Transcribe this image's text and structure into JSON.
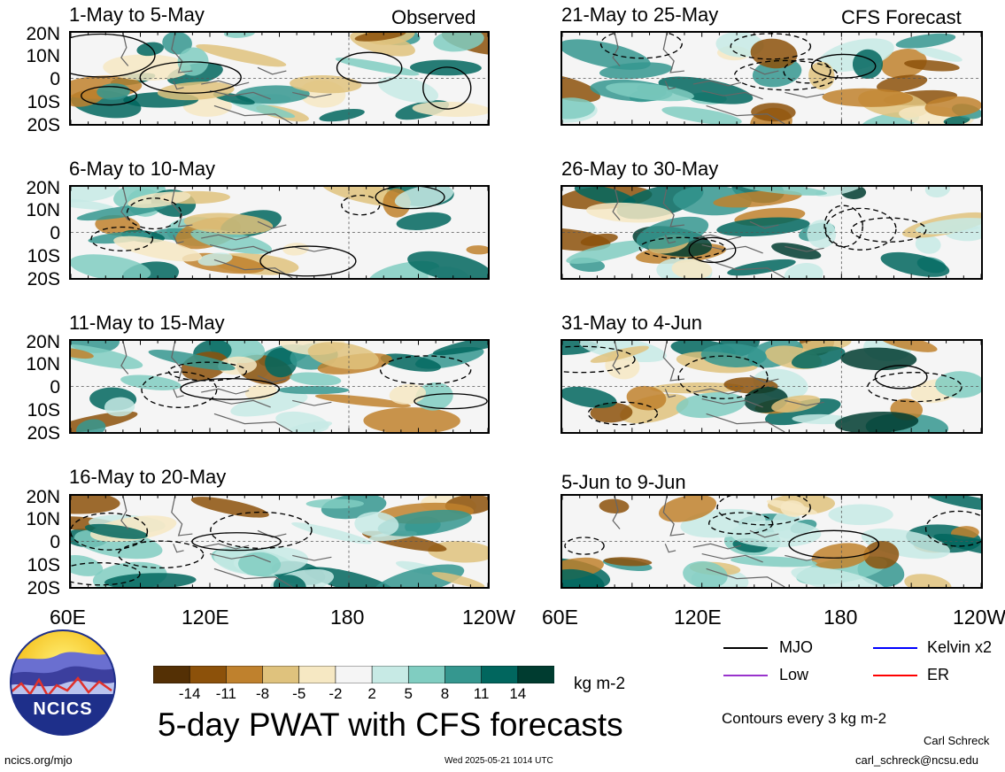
{
  "header": {
    "observed_label": "Observed",
    "forecast_label": "CFS Forecast"
  },
  "lat_labels": [
    "20N",
    "10N",
    "0",
    "10S",
    "20S"
  ],
  "lon_labels": [
    "60E",
    "120E",
    "180",
    "120W"
  ],
  "panels": {
    "observed": [
      {
        "title": "1-May to 5-May"
      },
      {
        "title": "6-May to 10-May"
      },
      {
        "title": "11-May to 15-May"
      },
      {
        "title": "16-May to 20-May"
      }
    ],
    "forecast": [
      {
        "title": "21-May to 25-May"
      },
      {
        "title": "26-May to 30-May"
      },
      {
        "title": "31-May to 4-Jun"
      },
      {
        "title": "5-Jun to 9-Jun"
      }
    ]
  },
  "colorbar": {
    "ticks": [
      "-14",
      "-11",
      "-8",
      "-5",
      "-2",
      "2",
      "5",
      "8",
      "11",
      "14"
    ],
    "colors": [
      "#543005",
      "#8c510a",
      "#bf812d",
      "#dfc27d",
      "#f6e8c3",
      "#f5f5f5",
      "#c7eae5",
      "#80cdc1",
      "#35978f",
      "#01665e",
      "#003c30"
    ],
    "units": "kg m-2"
  },
  "legend": {
    "items": [
      {
        "label": "MJO",
        "color": "#000000"
      },
      {
        "label": "Kelvin x2",
        "color": "#0000ff"
      },
      {
        "label": "Low",
        "color": "#9933cc"
      },
      {
        "label": "ER",
        "color": "#ff0000"
      }
    ],
    "contour_note": "Contours every 3 kg m-2"
  },
  "footer": {
    "main_title": "5-day PWAT with CFS forecasts",
    "site": "ncics.org/mjo",
    "timestamp": "Wed 2025-05-21 1014 UTC",
    "author": "Carl Schreck",
    "email": "carl_schreck@ncsu.edu",
    "logo_text": "NCICS"
  },
  "chart_data": {
    "type": "heatmap",
    "title": "5-day PWAT with CFS forecasts",
    "units": "kg m-2",
    "x_range": [
      "60E",
      "120W"
    ],
    "y_range": [
      "20S",
      "20N"
    ],
    "x_ticks": [
      "60E",
      "120E",
      "180",
      "120W"
    ],
    "y_ticks": [
      "20N",
      "10N",
      "0",
      "10S",
      "20S"
    ],
    "color_levels": [
      -14,
      -11,
      -8,
      -5,
      -2,
      2,
      5,
      8,
      11,
      14
    ],
    "contour_interval": 3,
    "panels": [
      "1-May to 5-May",
      "6-May to 10-May",
      "11-May to 15-May",
      "16-May to 20-May",
      "21-May to 25-May",
      "26-May to 30-May",
      "31-May to 4-Jun",
      "5-Jun to 9-Jun"
    ]
  }
}
